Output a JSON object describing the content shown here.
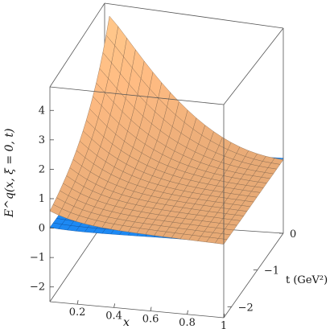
{
  "chart_data": {
    "type": "surface",
    "title": "",
    "xlabel": "x",
    "ylabel": "t (GeV²)",
    "zlabel": "E^q(x, ξ = 0, t)",
    "xlim": [
      0.05,
      1.0
    ],
    "ylim": [
      -2.3,
      0.0
    ],
    "zlim": [
      -2.5,
      4.8
    ],
    "x_ticks": [
      "0.2",
      "0.4",
      "0.6",
      "0.8",
      "1"
    ],
    "y_ticks": [
      "0",
      "−1",
      "−2"
    ],
    "z_ticks": [
      "4",
      "3",
      "2",
      "1",
      "0",
      "−1",
      "−2"
    ],
    "series": [
      {
        "name": "",
        "color": "#f2b27c",
        "description_peak_value": 5.0,
        "peak_at": {
          "x": 0.05,
          "t": 0.0
        }
      },
      {
        "name": "",
        "color": "#1e90ff",
        "description_min_value": -1.1,
        "min_at": {
          "x": 0.4,
          "t": -2.3
        }
      }
    ],
    "grid": false
  }
}
